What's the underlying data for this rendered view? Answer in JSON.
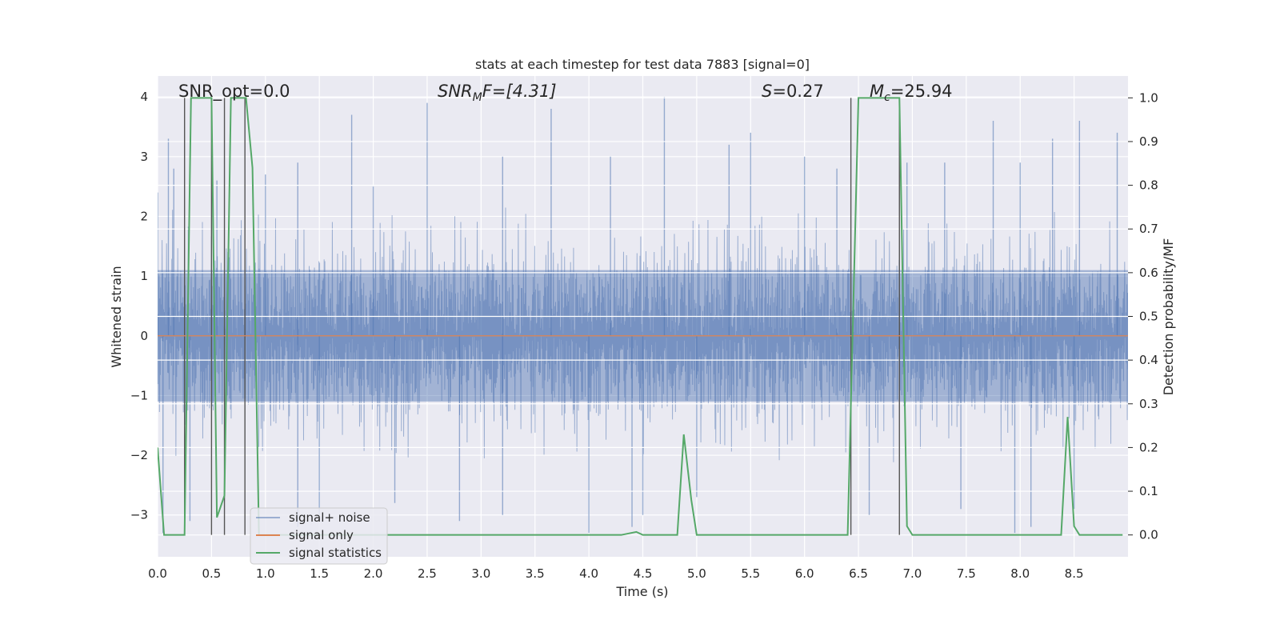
{
  "chart_data": {
    "type": "line",
    "title": "stats at each timestep for test data 7883 [signal=0]",
    "xlabel": "Time (s)",
    "ylabel": "Whitened strain",
    "ylabel_right": "Detection probability/MF",
    "xlim": [
      0.0,
      9.0
    ],
    "ylim": [
      -3.7,
      4.35
    ],
    "ylim_right": [
      -0.05,
      1.05
    ],
    "x_ticks": [
      0.0,
      0.5,
      1.0,
      1.5,
      2.0,
      2.5,
      3.0,
      3.5,
      4.0,
      4.5,
      5.0,
      5.5,
      6.0,
      6.5,
      7.0,
      7.5,
      8.0,
      8.5
    ],
    "x_tick_labels": [
      "0.0",
      "0.5",
      "1.0",
      "1.5",
      "2.0",
      "2.5",
      "3.0",
      "3.5",
      "4.0",
      "4.5",
      "5.0",
      "5.5",
      "6.0",
      "6.5",
      "7.0",
      "7.5",
      "8.0",
      "8.5"
    ],
    "y_ticks": [
      -3,
      -2,
      -1,
      0,
      1,
      2,
      3,
      4
    ],
    "y_tick_labels": [
      "−3",
      "−2",
      "−1",
      "0",
      "1",
      "2",
      "3",
      "4"
    ],
    "y_right_ticks": [
      0.0,
      0.1,
      0.2,
      0.3,
      0.4,
      0.5,
      0.6,
      0.7,
      0.8,
      0.9,
      1.0
    ],
    "y_right_tick_labels": [
      "0.0",
      "0.1",
      "0.2",
      "0.3",
      "0.4",
      "0.5",
      "0.6",
      "0.7",
      "0.8",
      "0.9",
      "1.0"
    ],
    "grid": true,
    "annotations": {
      "snr_opt": "SNR_opt=0.0",
      "snr_mf_prefix": "SNR",
      "snr_mf_sub": "M",
      "snr_mf_rest": "F=[4.31]",
      "s_var": "S",
      "s_rest": "=0.27",
      "mc_var": "M",
      "mc_sub": "c",
      "mc_rest": "=25.94"
    },
    "legend": {
      "position": "lower-left",
      "entries": [
        "signal+ noise",
        "signal only",
        "signal statistics"
      ]
    },
    "series": [
      {
        "name": "signal+ noise",
        "color": "#4c72b0",
        "style": "dense-noise",
        "core_range": [
          -1.1,
          1.1
        ],
        "typical_range": [
          -2.0,
          2.0
        ],
        "spikes": [
          [
            0.0,
            2.4
          ],
          [
            0.1,
            3.3
          ],
          [
            0.15,
            2.8
          ],
          [
            0.55,
            2.6
          ],
          [
            1.0,
            2.7
          ],
          [
            1.3,
            2.9
          ],
          [
            1.8,
            3.7
          ],
          [
            2.0,
            2.5
          ],
          [
            2.5,
            3.9
          ],
          [
            3.2,
            3.0
          ],
          [
            3.65,
            3.8
          ],
          [
            4.2,
            3.0
          ],
          [
            4.7,
            4.0
          ],
          [
            5.3,
            3.2
          ],
          [
            5.5,
            3.4
          ],
          [
            6.0,
            3.0
          ],
          [
            6.3,
            2.8
          ],
          [
            6.95,
            2.9
          ],
          [
            7.3,
            2.9
          ],
          [
            7.75,
            3.6
          ],
          [
            8.0,
            2.9
          ],
          [
            8.3,
            3.3
          ],
          [
            8.55,
            3.6
          ],
          [
            8.9,
            3.4
          ],
          [
            0.05,
            -3.3
          ],
          [
            0.3,
            -3.1
          ],
          [
            1.3,
            -3.2
          ],
          [
            1.5,
            -3.0
          ],
          [
            2.2,
            -2.8
          ],
          [
            2.8,
            -3.1
          ],
          [
            3.2,
            -3.0
          ],
          [
            4.0,
            -3.3
          ],
          [
            4.4,
            -3.2
          ],
          [
            4.5,
            -3.0
          ],
          [
            5.0,
            -2.7
          ],
          [
            6.6,
            -3.0
          ],
          [
            7.45,
            -2.9
          ],
          [
            7.95,
            -3.3
          ],
          [
            8.1,
            -3.2
          ],
          [
            8.5,
            -2.9
          ]
        ]
      },
      {
        "name": "signal only",
        "color": "#dd8452",
        "x": [
          0.0,
          9.0
        ],
        "y": [
          0.0,
          0.0
        ]
      },
      {
        "name": "signal statistics",
        "color": "#55a868",
        "axis": "right",
        "x": [
          0.0,
          0.06,
          0.25,
          0.31,
          0.5,
          0.55,
          0.62,
          0.68,
          0.82,
          0.88,
          0.94,
          1.0,
          1.5,
          2.0,
          3.0,
          4.0,
          4.3,
          4.44,
          4.5,
          4.82,
          4.88,
          4.95,
          5.0,
          6.0,
          6.4,
          6.5,
          6.88,
          6.95,
          7.0,
          7.5,
          8.0,
          8.38,
          8.44,
          8.5,
          8.55,
          8.95
        ],
        "y": [
          0.2,
          0.0,
          0.0,
          1.0,
          1.0,
          0.04,
          0.09,
          1.0,
          1.0,
          0.84,
          0.0,
          0.0,
          0.0,
          0.0,
          0.0,
          0.0,
          0.0,
          0.007,
          0.0,
          0.0,
          0.23,
          0.08,
          0.0,
          0.0,
          0.0,
          1.0,
          1.0,
          0.02,
          0.0,
          0.0,
          0.0,
          0.0,
          0.27,
          0.02,
          0.0,
          0.0
        ]
      }
    ],
    "vertical_lines": [
      0.25,
      0.5,
      0.62,
      0.81,
      6.43,
      6.88
    ]
  }
}
